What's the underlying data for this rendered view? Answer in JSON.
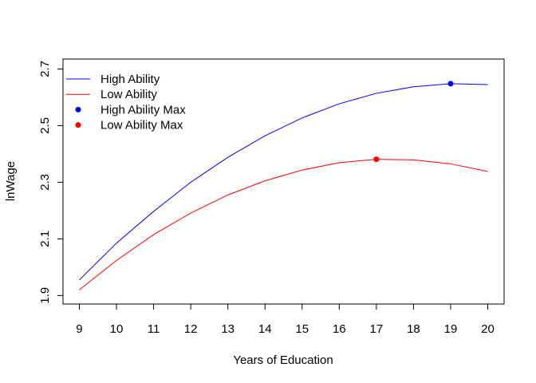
{
  "chart_data": {
    "type": "line",
    "title": "",
    "xlabel": "Years of Education",
    "ylabel": "lnWage",
    "xlim": [
      8.56,
      20.44
    ],
    "ylim": [
      1.87,
      2.735
    ],
    "x_ticks": [
      9,
      10,
      11,
      12,
      13,
      14,
      15,
      16,
      17,
      18,
      19,
      20
    ],
    "y_ticks": [
      1.9,
      2.1,
      2.3,
      2.5,
      2.7
    ],
    "grid": false,
    "legend_position": "top-left",
    "x": [
      9,
      10,
      11,
      12,
      13,
      14,
      15,
      16,
      17,
      18,
      19,
      20
    ],
    "series": [
      {
        "name": "High Ability",
        "color": "#0000FF",
        "style": "line",
        "values": [
          1.955,
          2.085,
          2.197,
          2.3,
          2.388,
          2.464,
          2.527,
          2.577,
          2.614,
          2.637,
          2.648,
          2.645
        ]
      },
      {
        "name": "Low Ability",
        "color": "#FF0000",
        "style": "line",
        "values": [
          1.92,
          2.024,
          2.115,
          2.191,
          2.255,
          2.305,
          2.343,
          2.369,
          2.381,
          2.379,
          2.365,
          2.338
        ]
      },
      {
        "name": "High Ability Max",
        "color": "#0000FF",
        "style": "point",
        "points": [
          {
            "x": 19,
            "y": 2.648
          }
        ]
      },
      {
        "name": "Low Ability Max",
        "color": "#FF0000",
        "style": "point",
        "points": [
          {
            "x": 17,
            "y": 2.381
          }
        ]
      }
    ]
  }
}
